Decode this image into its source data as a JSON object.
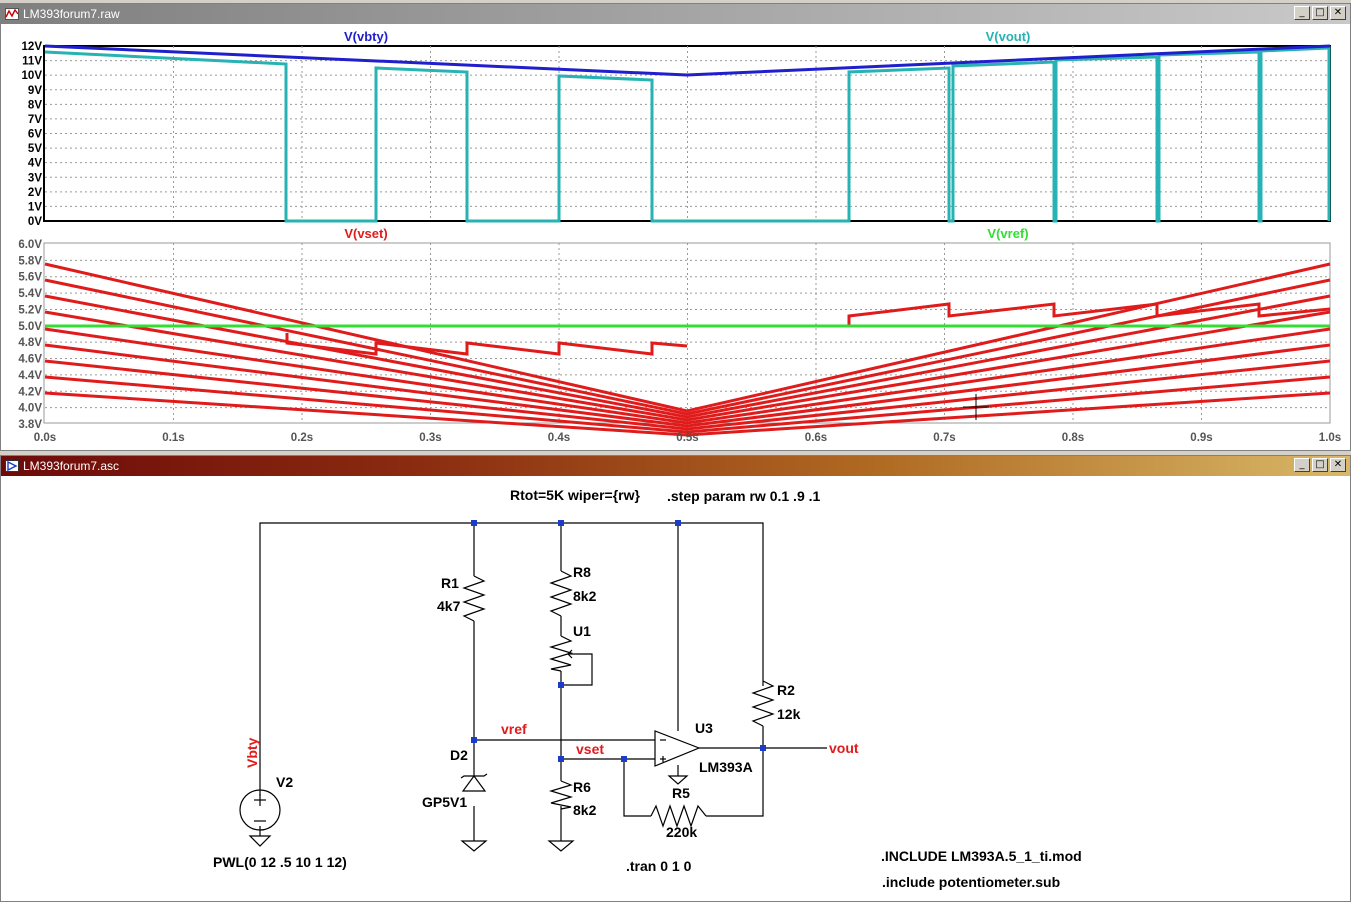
{
  "waveform_window": {
    "title": "LM393forum7.raw",
    "top_pane": {
      "traces": [
        {
          "name": "V(vbty)",
          "color": "#1f1fcc"
        },
        {
          "name": "V(vout)",
          "color": "#27b3b3"
        }
      ],
      "y_ticks": [
        "12V",
        "11V",
        "10V",
        "9V",
        "8V",
        "7V",
        "6V",
        "5V",
        "4V",
        "3V",
        "2V",
        "1V",
        "0V"
      ]
    },
    "bottom_pane": {
      "traces": [
        {
          "name": "V(vset)",
          "color": "#e01b1b"
        },
        {
          "name": "V(vref)",
          "color": "#33dd33"
        }
      ],
      "y_ticks": [
        "6.0V",
        "5.8V",
        "5.6V",
        "5.4V",
        "5.2V",
        "5.0V",
        "4.8V",
        "4.6V",
        "4.4V",
        "4.2V",
        "4.0V",
        "3.8V"
      ]
    },
    "x_ticks": [
      "0.0s",
      "0.1s",
      "0.2s",
      "0.3s",
      "0.4s",
      "0.5s",
      "0.6s",
      "0.7s",
      "0.8s",
      "0.9s",
      "1.0s"
    ]
  },
  "schematic_window": {
    "title": "LM393forum7.asc",
    "directives": {
      "params": "Rtot=5K wiper={rw}",
      "step": ".step param rw 0.1 .9 .1",
      "tran": ".tran 0 1 0",
      "include1": ".INCLUDE LM393A.5_1_ti.mod",
      "include2": ".include potentiometer.sub"
    },
    "components": {
      "r1": {
        "name": "R1",
        "value": "4k7"
      },
      "r8": {
        "name": "R8",
        "value": "8k2"
      },
      "u1": {
        "name": "U1"
      },
      "r2": {
        "name": "R2",
        "value": "12k"
      },
      "u3": {
        "name": "U3",
        "value": "LM393A"
      },
      "d2": {
        "name": "D2",
        "value": "GP5V1"
      },
      "r6": {
        "name": "R6",
        "value": "8k2"
      },
      "r5": {
        "name": "R5",
        "value": "220k"
      },
      "v2": {
        "name": "V2",
        "value": "PWL(0 12 .5 10 1 12)"
      }
    },
    "nets": {
      "vbty": "Vbty",
      "vref": "vref",
      "vset": "vset",
      "vout": "vout"
    }
  },
  "window_buttons": {
    "minimize": "_",
    "maximize": "□",
    "close": "✕"
  }
}
